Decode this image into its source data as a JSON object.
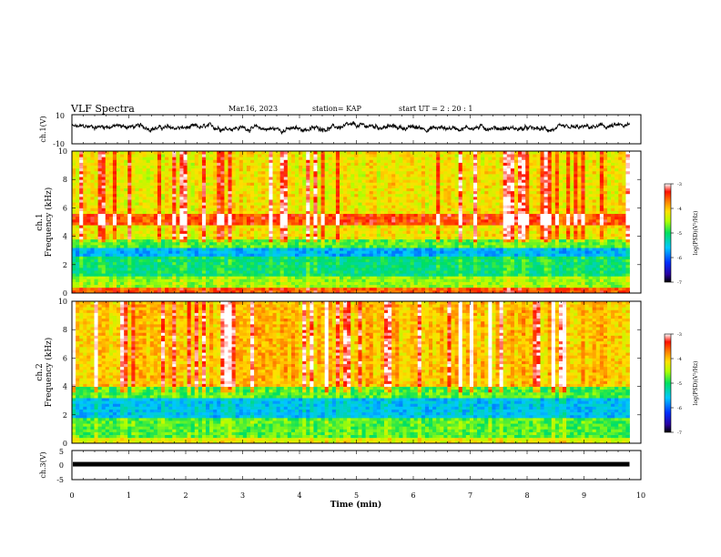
{
  "header": {
    "title": "VLF Spectra",
    "date": "Mar.16, 2023",
    "station": "station= KAP",
    "start": "start  UT =  2 : 20 : 1"
  },
  "chart_data": [
    {
      "type": "line",
      "title": "",
      "ylabel": "ch.1(V)",
      "ylim": [
        -10,
        10
      ],
      "yticks": [
        "10",
        "-10"
      ],
      "x_range_min": [
        0,
        9.8
      ],
      "trace_color": "#000000",
      "description_series": "noisy waveform centered slightly above 0 V"
    },
    {
      "type": "heatmap",
      "ylabel": "ch.1\nFrequency (kHz)",
      "ylim": [
        0,
        10
      ],
      "yticks": [
        "0",
        "2",
        "4",
        "6",
        "8",
        "10"
      ],
      "colorbar": {
        "label": "log(PSD)(V²/Hz)",
        "ticks": [
          "-3",
          "-4",
          "-5",
          "-6",
          "-7"
        ],
        "range": [
          -7,
          -3
        ]
      },
      "bands_khz": [
        {
          "from": 0.0,
          "to": 0.4,
          "level": -3.6
        },
        {
          "from": 0.4,
          "to": 1.2,
          "level": -4.6
        },
        {
          "from": 1.2,
          "to": 2.6,
          "level": -5.1
        },
        {
          "from": 2.6,
          "to": 3.3,
          "level": -5.7
        },
        {
          "from": 3.3,
          "to": 3.8,
          "level": -4.8
        },
        {
          "from": 3.8,
          "to": 4.8,
          "level": -4.2
        },
        {
          "from": 4.8,
          "to": 5.6,
          "level": -3.5
        },
        {
          "from": 5.6,
          "to": 10.0,
          "level": -4.2
        }
      ]
    },
    {
      "type": "heatmap",
      "ylabel": "ch.2\nFrequency (kHz)",
      "ylim": [
        0,
        10
      ],
      "yticks": [
        "0",
        "2",
        "4",
        "6",
        "8",
        "10"
      ],
      "colorbar": {
        "label": "log(PSD)(V²/Hz)",
        "ticks": [
          "-3",
          "-4",
          "-5",
          "-6",
          "-7"
        ],
        "range": [
          -7,
          -3
        ]
      },
      "bands_khz": [
        {
          "from": 0.0,
          "to": 0.4,
          "level": -4.3
        },
        {
          "from": 0.4,
          "to": 1.8,
          "level": -4.8
        },
        {
          "from": 1.8,
          "to": 3.2,
          "level": -5.6
        },
        {
          "from": 3.2,
          "to": 4.0,
          "level": -4.8
        },
        {
          "from": 4.0,
          "to": 10.0,
          "level": -4.0
        }
      ]
    },
    {
      "type": "line",
      "ylabel": "ch.3(V)",
      "ylim": [
        -5,
        5
      ],
      "yticks": [
        "5",
        "0",
        "-5"
      ],
      "trace_level_v": 0.3,
      "trace_color": "#000000"
    }
  ],
  "xaxis": {
    "label": "Time  (min)",
    "ticks": [
      "0",
      "1",
      "2",
      "3",
      "4",
      "5",
      "6",
      "7",
      "8",
      "9",
      "10"
    ],
    "xlim": [
      0,
      10
    ],
    "data_end_min": 9.8
  }
}
